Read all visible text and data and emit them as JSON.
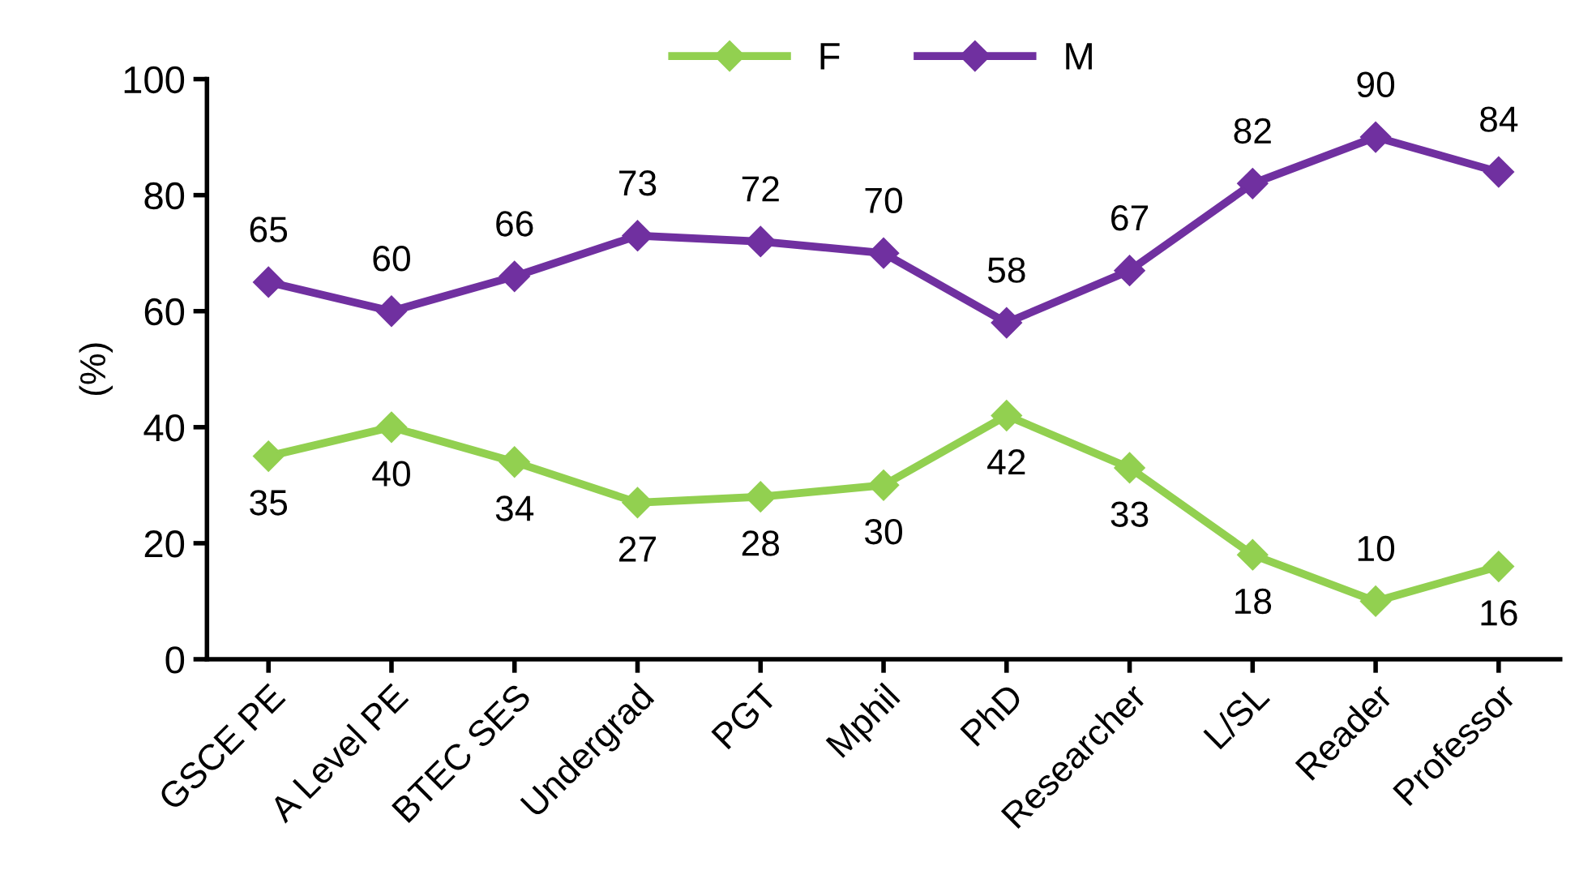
{
  "chart_data": {
    "type": "line",
    "ylabel": "(%)",
    "categories": [
      "GSCE PE",
      "A Level PE",
      "BTEC SES",
      "Undergrad",
      "PGT",
      "Mphil",
      "PhD",
      "Researcher",
      "L/SL",
      "Reader",
      "Professor"
    ],
    "series": [
      {
        "name": "F",
        "color": "#92d050",
        "values": [
          35,
          40,
          34,
          27,
          28,
          30,
          42,
          33,
          18,
          10,
          16
        ]
      },
      {
        "name": "M",
        "color": "#7030a0",
        "values": [
          65,
          60,
          66,
          73,
          72,
          70,
          58,
          67,
          82,
          90,
          84
        ]
      }
    ],
    "ylim": [
      0,
      100
    ],
    "yticks": [
      0,
      20,
      40,
      60,
      80,
      100
    ],
    "grid": false,
    "legend": "top",
    "marker": "diamond",
    "line_style": "solid",
    "data_labels": true
  }
}
